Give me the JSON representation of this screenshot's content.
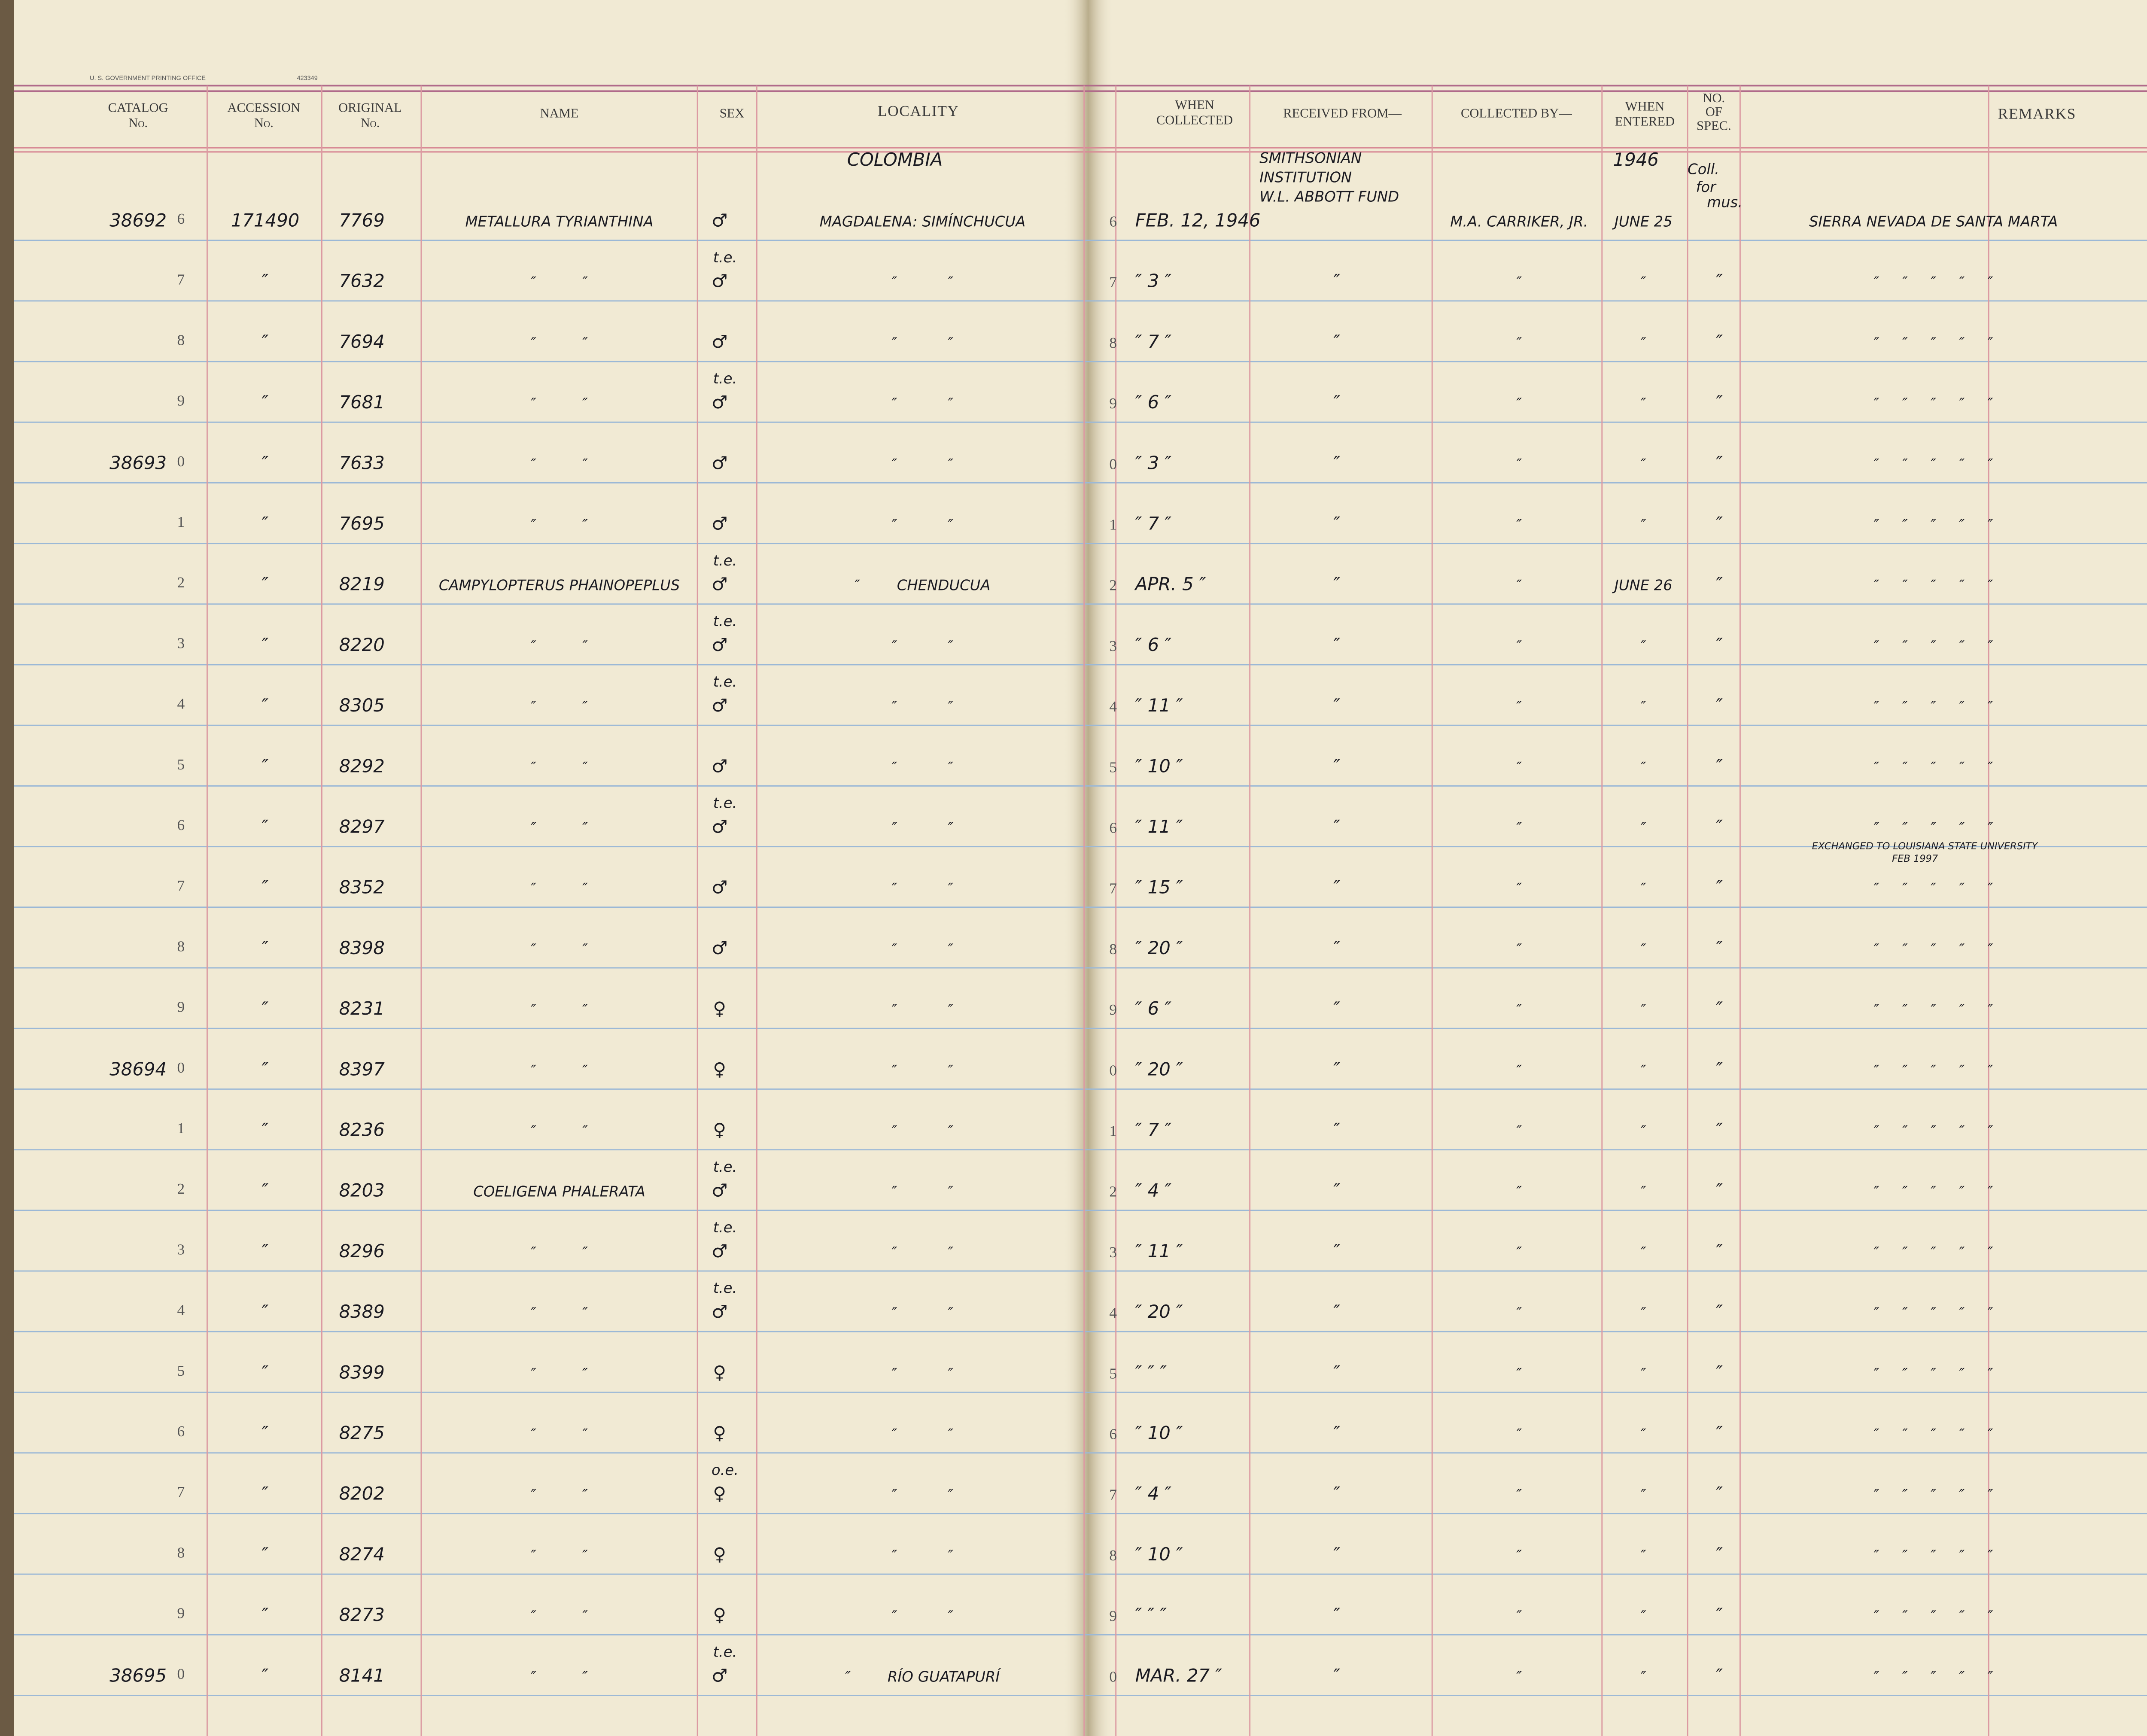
{
  "header": {
    "printer": "U. S. GOVERNMENT PRINTING OFFICE",
    "print_code": "423349",
    "catalog_no": [
      "CATALOG",
      "No."
    ],
    "accession_no": [
      "ACCESSION",
      "No."
    ],
    "original_no": [
      "ORIGINAL",
      "No."
    ],
    "name": "NAME",
    "sex": "SEX",
    "locality": "LOCALITY",
    "when_collected": [
      "WHEN",
      "COLLECTED"
    ],
    "received_from": "RECEIVED FROM—",
    "collected_by": "COLLECTED BY—",
    "when_entered": [
      "WHEN",
      "ENTERED"
    ],
    "no_of_spec": [
      "NO.",
      "OF",
      "SPEC."
    ],
    "remarks": "REMARKS"
  },
  "annotations": {
    "country": "COLOMBIA",
    "received_from": [
      "SMITHSONIAN",
      "INSTITUTION",
      "W.L. ABBOTT FUND"
    ],
    "year_entered": "1946",
    "spec_note": [
      "Coll.",
      "for",
      "mus."
    ],
    "exchange_note": [
      "EXCHANGED TO LOUISIANA STATE UNIVERSITY",
      "FEB 1997"
    ]
  },
  "rows": [
    {
      "n": "6",
      "cat": "38692",
      "acc": "171490",
      "orig": "7769",
      "name": "METALLURA TYRIANTHINA",
      "sex": "♂",
      "loc": "MAGDALENA: SIMÍNCHUCUA",
      "when": "FEB. 12, 1946",
      "coll": "M.A. CARRIKER, JR.",
      "ent": "JUNE 25",
      "rem": "SIERRA NEVADA DE SANTA MARTA"
    },
    {
      "n": "7",
      "acc": "″",
      "orig": "7632",
      "name": "″          ″",
      "note": "t.e.",
      "sex": "♂",
      "loc": "″           ″",
      "when": "″ 3 ″",
      "recv": "″",
      "coll": "″",
      "ent": "″",
      "spec": "″",
      "rem": "″     ″     ″     ″     ″"
    },
    {
      "n": "8",
      "acc": "″",
      "orig": "7694",
      "name": "″          ″",
      "sex": "♂",
      "loc": "″           ″",
      "when": "″ 7 ″",
      "recv": "″",
      "coll": "″",
      "ent": "″",
      "spec": "″",
      "rem": "″     ″     ″     ″     ″"
    },
    {
      "n": "9",
      "acc": "″",
      "orig": "7681",
      "name": "″          ″",
      "note": "t.e.",
      "sex": "♂",
      "loc": "″           ″",
      "when": "″ 6 ″",
      "recv": "″",
      "coll": "″",
      "ent": "″",
      "spec": "″",
      "rem": "″     ″     ″     ″     ″"
    },
    {
      "n": "0",
      "cat": "38693",
      "acc": "″",
      "orig": "7633",
      "name": "″          ″",
      "sex": "♂",
      "loc": "″           ″",
      "when": "″ 3 ″",
      "recv": "″",
      "coll": "″",
      "ent": "″",
      "spec": "″",
      "rem": "″     ″     ″     ″     ″"
    },
    {
      "n": "1",
      "acc": "″",
      "orig": "7695",
      "name": "″          ″",
      "sex": "♂",
      "loc": "″           ″",
      "when": "″ 7 ″",
      "recv": "″",
      "coll": "″",
      "ent": "″",
      "spec": "″",
      "rem": "″     ″     ″     ″     ″"
    },
    {
      "n": "2",
      "acc": "″",
      "orig": "8219",
      "name": "CAMPYLOPTERUS PHAINOPEPLUS",
      "note": "t.e.",
      "sex": "♂",
      "loc": "″        CHENDUCUA",
      "when": "APR. 5 ″",
      "recv": "″",
      "coll": "″",
      "ent": "JUNE 26",
      "spec": "″",
      "rem": "″     ″     ″     ″     ″"
    },
    {
      "n": "3",
      "acc": "″",
      "orig": "8220",
      "name": "″          ″",
      "note": "t.e.",
      "sex": "♂",
      "loc": "″           ″",
      "when": "″ 6 ″",
      "recv": "″",
      "coll": "″",
      "ent": "″",
      "spec": "″",
      "rem": "″     ″     ″     ″     ″"
    },
    {
      "n": "4",
      "acc": "″",
      "orig": "8305",
      "name": "″          ″",
      "note": "t.e.",
      "sex": "♂",
      "loc": "″           ″",
      "when": "″ 11 ″",
      "recv": "″",
      "coll": "″",
      "ent": "″",
      "spec": "″",
      "rem": "″     ″     ″     ″     ″"
    },
    {
      "n": "5",
      "acc": "″",
      "orig": "8292",
      "name": "″          ″",
      "sex": "♂",
      "loc": "″           ″",
      "when": "″ 10 ″",
      "recv": "″",
      "coll": "″",
      "ent": "″",
      "spec": "″",
      "rem": "″     ″     ″     ″     ″"
    },
    {
      "n": "6",
      "acc": "″",
      "orig": "8297",
      "name": "″          ″",
      "note": "t.e.",
      "sex": "♂",
      "loc": "″           ″",
      "when": "″ 11 ″",
      "recv": "″",
      "coll": "″",
      "ent": "″",
      "spec": "″",
      "rem": "″     ″     ″     ″     ″"
    },
    {
      "n": "7",
      "acc": "″",
      "orig": "8352",
      "name": "″          ″",
      "sex": "♂",
      "loc": "″           ″",
      "when": "″ 15 ″",
      "recv": "″",
      "coll": "″",
      "ent": "″",
      "spec": "″",
      "rem": "″     ″     ″     ″     ″"
    },
    {
      "n": "8",
      "acc": "″",
      "orig": "8398",
      "name": "″          ″",
      "sex": "♂",
      "loc": "″           ″",
      "when": "″ 20 ″",
      "recv": "″",
      "coll": "″",
      "ent": "″",
      "spec": "″",
      "rem": "″     ″     ″     ″     ″"
    },
    {
      "n": "9",
      "acc": "″",
      "orig": "8231",
      "name": "″          ″",
      "sex": "♀",
      "loc": "″           ″",
      "when": "″ 6 ″",
      "recv": "″",
      "coll": "″",
      "ent": "″",
      "spec": "″",
      "rem": "″     ″     ″     ″     ″"
    },
    {
      "n": "0",
      "cat": "38694",
      "acc": "″",
      "orig": "8397",
      "name": "″          ″",
      "sex": "♀",
      "loc": "″           ″",
      "when": "″ 20 ″",
      "recv": "″",
      "coll": "″",
      "ent": "″",
      "spec": "″",
      "rem": "″     ″     ″     ″     ″"
    },
    {
      "n": "1",
      "acc": "″",
      "orig": "8236",
      "name": "″          ″",
      "sex": "♀",
      "loc": "″           ″",
      "when": "″ 7 ″",
      "recv": "″",
      "coll": "″",
      "ent": "″",
      "spec": "″",
      "rem": "″     ″     ″     ″     ″"
    },
    {
      "n": "2",
      "acc": "″",
      "orig": "8203",
      "name": "COELIGENA PHALERATA",
      "note": "t.e.",
      "sex": "♂",
      "loc": "″           ″",
      "when": "″ 4 ″",
      "recv": "″",
      "coll": "″",
      "ent": "″",
      "spec": "″",
      "rem": "″     ″     ″     ″     ″"
    },
    {
      "n": "3",
      "acc": "″",
      "orig": "8296",
      "name": "″          ″",
      "note": "t.e.",
      "sex": "♂",
      "loc": "″           ″",
      "when": "″ 11 ″",
      "recv": "″",
      "coll": "″",
      "ent": "″",
      "spec": "″",
      "rem": "″     ″     ″     ″     ″"
    },
    {
      "n": "4",
      "acc": "″",
      "orig": "8389",
      "name": "″          ″",
      "note": "t.e.",
      "sex": "♂",
      "loc": "″           ″",
      "when": "″ 20 ″",
      "recv": "″",
      "coll": "″",
      "ent": "″",
      "spec": "″",
      "rem": "″     ″     ″     ″     ″"
    },
    {
      "n": "5",
      "acc": "″",
      "orig": "8399",
      "name": "″          ″",
      "sex": "♀",
      "loc": "″           ″",
      "when": "″ ″ ″",
      "recv": "″",
      "coll": "″",
      "ent": "″",
      "spec": "″",
      "rem": "″     ″     ″     ″     ″"
    },
    {
      "n": "6",
      "acc": "″",
      "orig": "8275",
      "name": "″          ″",
      "sex": "♀",
      "loc": "″           ″",
      "when": "″ 10 ″",
      "recv": "″",
      "coll": "″",
      "ent": "″",
      "spec": "″",
      "rem": "″     ″     ″     ″     ″"
    },
    {
      "n": "7",
      "acc": "″",
      "orig": "8202",
      "name": "″          ″",
      "note": "o.e.",
      "sex": "♀",
      "loc": "″           ″",
      "when": "″ 4 ″",
      "recv": "″",
      "coll": "″",
      "ent": "″",
      "spec": "″",
      "rem": "″     ″     ″     ″     ″"
    },
    {
      "n": "8",
      "acc": "″",
      "orig": "8274",
      "name": "″          ″",
      "sex": "♀",
      "loc": "″           ″",
      "when": "″ 10 ″",
      "recv": "″",
      "coll": "″",
      "ent": "″",
      "spec": "″",
      "rem": "″     ″     ″     ″     ″"
    },
    {
      "n": "9",
      "acc": "″",
      "orig": "8273",
      "name": "″          ″",
      "sex": "♀",
      "loc": "″           ″",
      "when": "″ ″ ″",
      "recv": "″",
      "coll": "″",
      "ent": "″",
      "spec": "″",
      "rem": "″     ″     ″     ″     ″"
    },
    {
      "n": "0",
      "cat": "38695",
      "acc": "″",
      "orig": "8141",
      "name": "″          ″",
      "note": "t.e.",
      "sex": "♂",
      "loc": "″        RÍO GUATAPURÍ",
      "when": "MAR. 27 ″",
      "recv": "″",
      "coll": "″",
      "ent": "″",
      "spec": "″",
      "rem": "″     ″     ″     ″     ″"
    }
  ]
}
